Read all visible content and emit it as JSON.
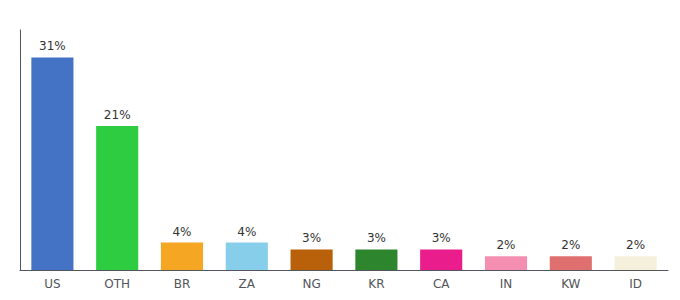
{
  "chart_data": {
    "type": "bar",
    "categories": [
      "US",
      "OTH",
      "BR",
      "ZA",
      "NG",
      "KR",
      "CA",
      "IN",
      "KW",
      "ID"
    ],
    "values": [
      31,
      21,
      4,
      4,
      3,
      3,
      3,
      2,
      2,
      2
    ],
    "value_labels": [
      "31%",
      "21%",
      "4%",
      "4%",
      "3%",
      "3%",
      "3%",
      "2%",
      "2%",
      "2%"
    ],
    "colors": [
      "#4472c4",
      "#2ecc40",
      "#f5a623",
      "#87ceeb",
      "#b8610a",
      "#2d862d",
      "#e91e8c",
      "#f48fb1",
      "#e07070",
      "#f5f0dc"
    ],
    "ylim": [
      0,
      35
    ],
    "data_labels": true,
    "tick_labels": "x",
    "grid": false
  }
}
